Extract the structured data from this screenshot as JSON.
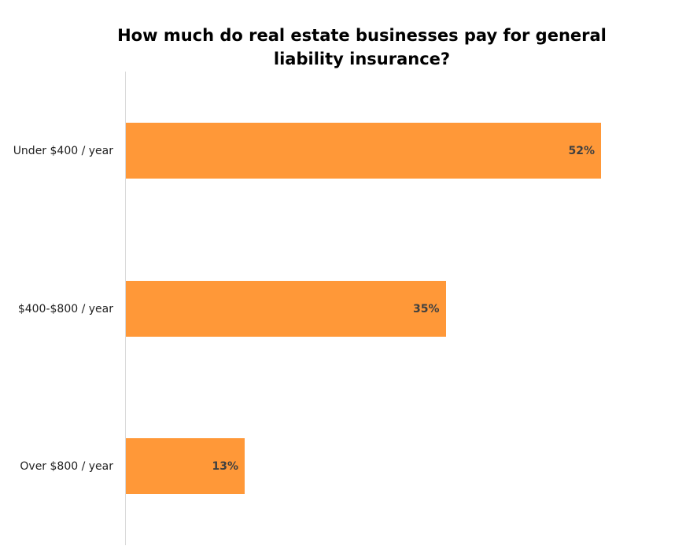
{
  "chart_data": {
    "type": "bar",
    "orientation": "horizontal",
    "title": "How much do real estate businesses pay for general liability insurance?",
    "title_lines": [
      "How much do real estate businesses pay for general",
      "liability insurance?"
    ],
    "categories": [
      "Under $400 / year",
      "$400-$800 / year",
      "Over $800 / year"
    ],
    "values": [
      52,
      35,
      13
    ],
    "value_labels": [
      "52%",
      "35%",
      "13%"
    ],
    "xlabel": "",
    "ylabel": "",
    "unit": "%",
    "grid": false,
    "bar_color": "#ff9838"
  }
}
